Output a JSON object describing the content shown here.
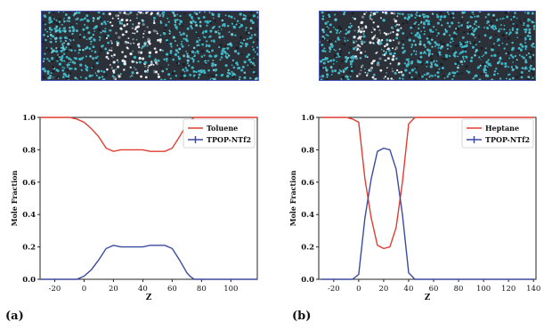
{
  "panels": {
    "a": "(a)",
    "b": "(b)"
  },
  "colors": {
    "series_red": "#e03c31",
    "series_blue": "#3a4aa0",
    "snapshot_bg": "#2c3038",
    "snapshot_cyan": "#3fb7c7",
    "snapshot_white": "#e8ecef",
    "snapshot_border": "#4a57b8"
  },
  "chart_data": [
    {
      "type": "line",
      "title": "",
      "xlabel": "Z",
      "ylabel": "Mole Fraction",
      "xlim": [
        -30,
        118
      ],
      "ylim": [
        0.0,
        1.0
      ],
      "x_ticks": [
        -20,
        0,
        20,
        40,
        60,
        80,
        100
      ],
      "y_ticks": [
        0.0,
        0.2,
        0.4,
        0.6,
        0.8,
        1.0
      ],
      "grid": false,
      "legend": "top-right",
      "series": [
        {
          "name": "Toluene",
          "color": "#e03c31",
          "x": [
            -30,
            -20,
            -10,
            -5,
            0,
            5,
            10,
            15,
            20,
            25,
            30,
            35,
            40,
            45,
            50,
            55,
            60,
            65,
            70,
            72,
            75,
            80,
            90,
            100,
            110,
            118
          ],
          "y": [
            1.0,
            1.0,
            1.0,
            0.99,
            0.97,
            0.93,
            0.88,
            0.81,
            0.79,
            0.8,
            0.8,
            0.8,
            0.8,
            0.79,
            0.79,
            0.79,
            0.81,
            0.88,
            0.96,
            0.98,
            1.0,
            1.0,
            1.0,
            1.0,
            1.0,
            1.0
          ]
        },
        {
          "name": "TPOP-NTf2",
          "color": "#3a4aa0",
          "x": [
            -30,
            -20,
            -10,
            -5,
            0,
            5,
            10,
            15,
            20,
            25,
            30,
            35,
            40,
            45,
            50,
            55,
            60,
            65,
            70,
            72,
            75,
            80,
            90,
            100,
            110,
            118
          ],
          "y": [
            0.0,
            0.0,
            0.0,
            0.0,
            0.02,
            0.06,
            0.12,
            0.19,
            0.21,
            0.2,
            0.2,
            0.2,
            0.2,
            0.21,
            0.21,
            0.21,
            0.19,
            0.12,
            0.04,
            0.02,
            0.0,
            0.0,
            0.0,
            0.0,
            0.0,
            0.0
          ]
        }
      ]
    },
    {
      "type": "line",
      "title": "",
      "xlabel": "Z",
      "ylabel": "Mole Fraction",
      "xlim": [
        -32,
        142
      ],
      "ylim": [
        0.0,
        1.0
      ],
      "x_ticks": [
        -20,
        0,
        20,
        40,
        60,
        80,
        100,
        120,
        140
      ],
      "y_ticks": [
        0.0,
        0.2,
        0.4,
        0.6,
        0.8,
        1.0
      ],
      "grid": false,
      "legend": "top-right",
      "series": [
        {
          "name": "Heptane",
          "color": "#e03c31",
          "x": [
            -30,
            -20,
            -10,
            -5,
            0,
            5,
            10,
            15,
            20,
            25,
            30,
            35,
            40,
            45,
            50,
            60,
            80,
            100,
            120,
            140
          ],
          "y": [
            1.0,
            1.0,
            1.0,
            0.99,
            0.97,
            0.62,
            0.38,
            0.21,
            0.19,
            0.2,
            0.32,
            0.6,
            0.96,
            1.0,
            1.0,
            1.0,
            1.0,
            1.0,
            1.0,
            1.0
          ]
        },
        {
          "name": "TPOP-NTf2",
          "color": "#3a4aa0",
          "x": [
            -30,
            -20,
            -10,
            -5,
            0,
            5,
            10,
            15,
            20,
            25,
            30,
            35,
            40,
            45,
            50,
            60,
            80,
            100,
            120,
            140
          ],
          "y": [
            0.0,
            0.0,
            0.0,
            0.0,
            0.03,
            0.38,
            0.62,
            0.79,
            0.81,
            0.8,
            0.68,
            0.4,
            0.04,
            0.0,
            0.0,
            0.0,
            0.0,
            0.0,
            0.0,
            0.0
          ]
        }
      ]
    }
  ]
}
